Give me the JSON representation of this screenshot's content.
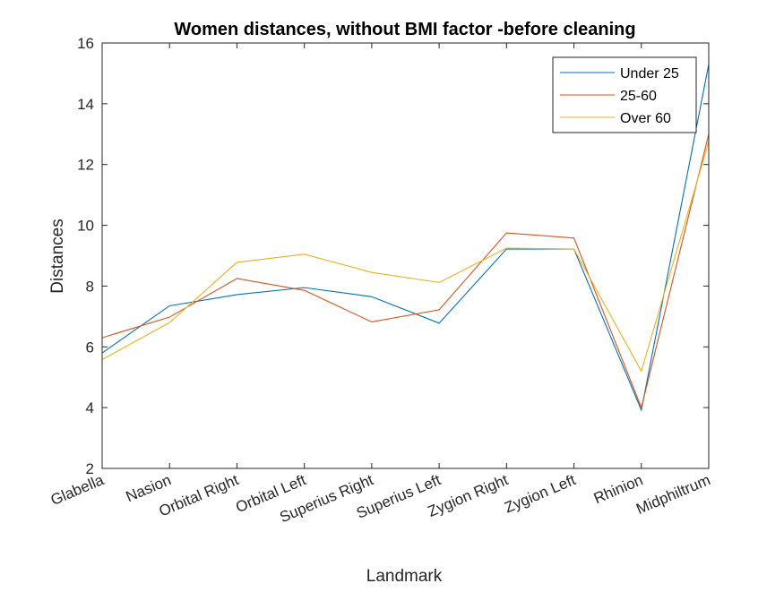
{
  "chart_data": {
    "type": "line",
    "title": "Women distances, without BMI factor -before cleaning",
    "xlabel": "Landmark",
    "ylabel": "Distances",
    "categories": [
      "Glabella",
      "Nasion",
      "Orbital Right",
      "Orbital Left",
      "Superius Right",
      "Superius Left",
      "Zygion Right",
      "Zygion Left",
      "Rhinion",
      "Midphiltrum"
    ],
    "ylim": [
      2,
      16
    ],
    "yticks": [
      2,
      4,
      6,
      8,
      10,
      12,
      14,
      16
    ],
    "grid": false,
    "legend_position": "top-right",
    "series": [
      {
        "name": "Under 25",
        "color": "#0072BD",
        "values": [
          5.8,
          7.35,
          7.72,
          7.95,
          7.65,
          6.78,
          9.22,
          9.22,
          3.92,
          15.3
        ]
      },
      {
        "name": "25-60",
        "color": "#D95319",
        "values": [
          6.3,
          6.98,
          8.25,
          7.86,
          6.82,
          7.22,
          9.75,
          9.58,
          4.0,
          13.0
        ]
      },
      {
        "name": "Over 60",
        "color": "#EDB120",
        "values": [
          5.58,
          6.8,
          8.78,
          9.05,
          8.45,
          8.12,
          9.25,
          9.22,
          5.2,
          12.75
        ]
      }
    ]
  }
}
